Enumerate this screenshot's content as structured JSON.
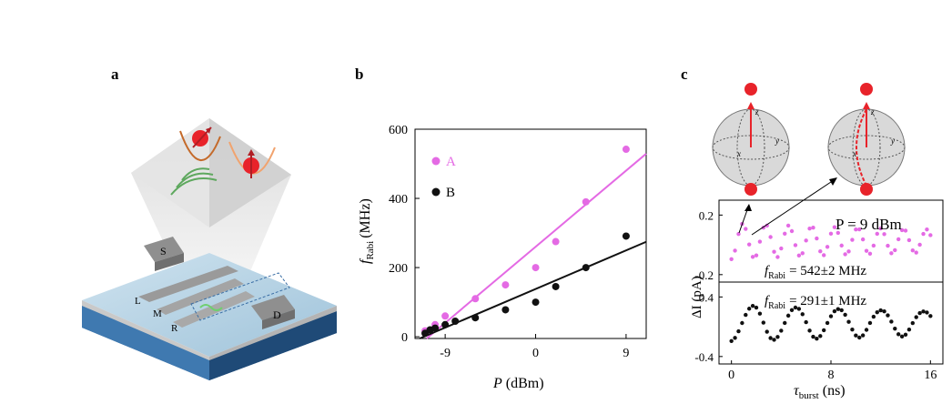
{
  "panels": {
    "a": "a",
    "b": "b",
    "c": "c"
  },
  "device": {
    "labels": [
      "S",
      "D",
      "L",
      "M",
      "R"
    ]
  },
  "chart_b": {
    "ylabel_main": "f",
    "ylabel_sub": "Rabi",
    "ylabel_unit": "(MHz)",
    "xlabel_main": "P",
    "xlabel_unit": "(dBm)",
    "legend": [
      "A",
      "B"
    ]
  },
  "chart_c": {
    "power_label": "P = 9 dBm",
    "top_frabi_value": "= 542±2 MHz",
    "bottom_frabi_value": "= 291±1 MHz",
    "frabi_main": "f",
    "frabi_sub": "Rabi",
    "ylabel": "ΔI (pA)",
    "xlabel_main": "τ",
    "xlabel_sub": "burst",
    "xlabel_unit": "(ns)"
  },
  "colors": {
    "A": "#e46ae4",
    "B": "#111111",
    "spin": "#e8232a"
  },
  "chart_data": [
    {
      "type": "scatter",
      "xlabel": "P (dBm)",
      "ylabel": "f Rabi (MHz)",
      "xlim": [
        -12,
        11
      ],
      "ylim": [
        -5,
        600
      ],
      "xticks": [
        -9,
        0,
        9
      ],
      "yticks": [
        0,
        200,
        400,
        600
      ],
      "legend_placement": "top-left",
      "series": [
        {
          "name": "A",
          "color": "#e46ae4",
          "x": [
            -11,
            -10,
            -9,
            -6,
            -3,
            0,
            2,
            5,
            9
          ],
          "y": [
            17,
            35,
            60,
            110,
            150,
            200,
            275,
            390,
            542
          ]
        },
        {
          "name": "B",
          "color": "#111111",
          "x": [
            -11,
            -10.5,
            -10,
            -9,
            -8,
            -6,
            -3,
            0,
            2,
            5,
            9
          ],
          "y": [
            10,
            20,
            25,
            35,
            45,
            55,
            78,
            100,
            145,
            200,
            291
          ]
        }
      ]
    },
    {
      "type": "scatter",
      "xlabel": "τ burst (ns)",
      "ylabel": "ΔI (pA)",
      "xlim": [
        -1,
        17
      ],
      "xticks": [
        0,
        8,
        16
      ],
      "subplots": [
        {
          "yticks": [
            0.2,
            -0.2
          ],
          "ylim": [
            -0.25,
            0.3
          ],
          "color": "#e46ae4",
          "frequency_MHz": 542
        },
        {
          "yticks": [
            0.4,
            -0.4
          ],
          "ylim": [
            -0.5,
            0.6
          ],
          "color": "#111111",
          "frequency_MHz": 291
        }
      ]
    }
  ]
}
